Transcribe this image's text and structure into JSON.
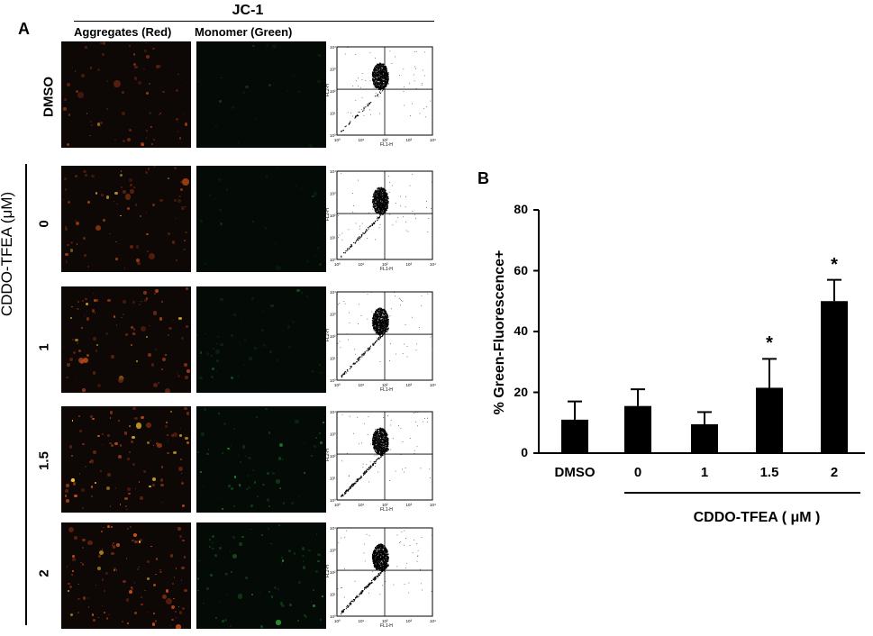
{
  "panel_a": {
    "letter": "A",
    "header": "JC-1",
    "col_red": "Aggregates (Red)",
    "col_green": "Monomer (Green)",
    "row_dmso": "DMSO",
    "treatment_label": "CDDO-TFEA (μM)",
    "row_labels": [
      "0",
      "1",
      "1.5",
      "2"
    ],
    "flow_axes": {
      "y": "FL2-H",
      "x": "FL1-H"
    },
    "flow_ticks": [
      "10⁰",
      "10¹",
      "10²",
      "10³",
      "10⁴"
    ]
  },
  "panel_b": {
    "letter": "B",
    "ylabel": "% Green-Fluorescence+",
    "xlabel": "CDDO-TFEA ( μM )"
  },
  "chart_data": {
    "type": "bar",
    "title": "",
    "categories": [
      "DMSO",
      "0",
      "1",
      "1.5",
      "2"
    ],
    "values": [
      11,
      15.5,
      9.5,
      21.5,
      50
    ],
    "errors": [
      6,
      5.5,
      4,
      9.5,
      7
    ],
    "significance": [
      "",
      "",
      "",
      "*",
      "*"
    ],
    "xlabel": "CDDO-TFEA ( μM )",
    "ylabel": "% Green-Fluorescence+",
    "ylim": [
      0,
      80
    ],
    "yticks": [
      0,
      20,
      40,
      60,
      80
    ],
    "grid": false,
    "bar_color": "#000000"
  }
}
